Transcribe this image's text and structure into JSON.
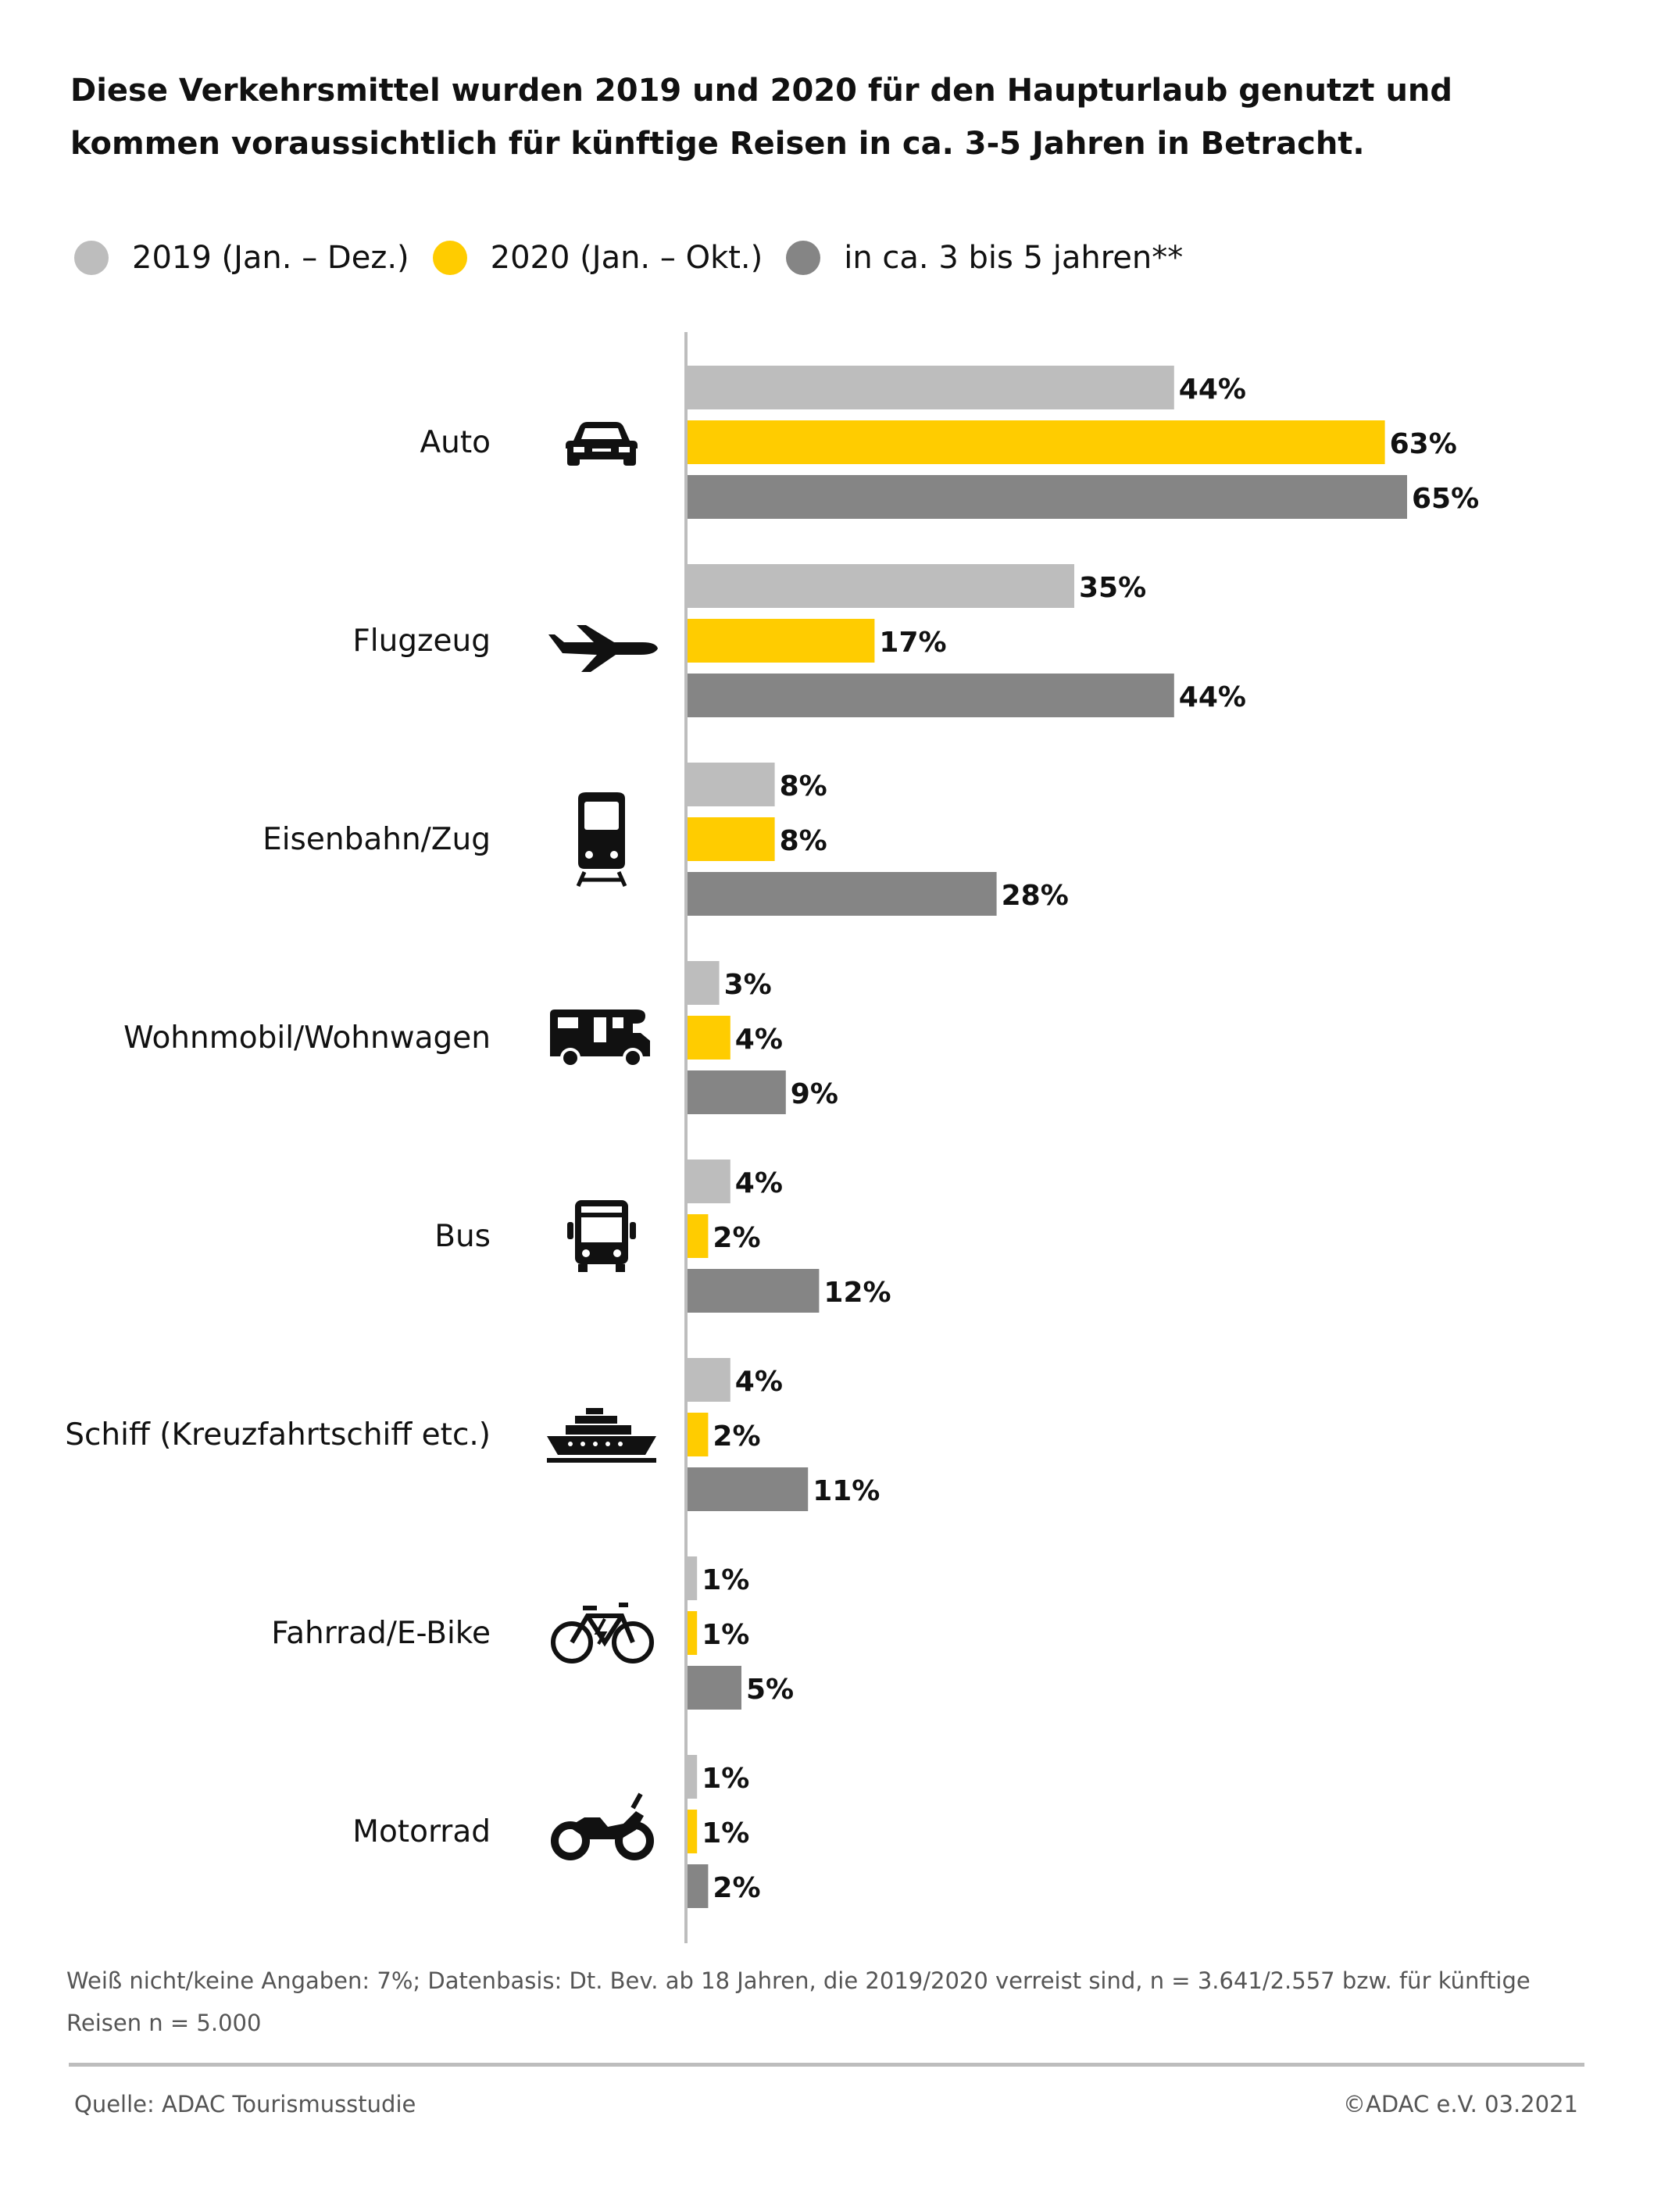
{
  "title": "Diese Verkehrsmittel wurden 2019 und 2020 für den Haupturlaub genutzt und kommen voraussichtlich für künftige Reisen in ca. 3-5 Jahren in Betracht.",
  "legend": [
    {
      "label": "2019 (Jan. – Dez.)",
      "color": "#bdbdbd"
    },
    {
      "label": "2020 (Jan. – Okt.)",
      "color": "#ffcc00"
    },
    {
      "label": "in ca. 3 bis 5 jahren**",
      "color": "#858585"
    }
  ],
  "chart_data": {
    "type": "bar",
    "orientation": "horizontal",
    "categories": [
      "Auto",
      "Flugzeug",
      "Eisenbahn/Zug",
      "Wohnmobil/Wohnwagen",
      "Bus",
      "Schiff (Kreuzfahrtschiff etc.)",
      "Fahrrad/E-Bike",
      "Motorrad"
    ],
    "category_icons": [
      "car-icon",
      "airplane-icon",
      "train-icon",
      "camper-icon",
      "bus-icon",
      "ship-icon",
      "bicycle-icon",
      "motorcycle-icon"
    ],
    "series": [
      {
        "name": "2019 (Jan. – Dez.)",
        "color": "#bdbdbd",
        "values": [
          44,
          35,
          8,
          3,
          4,
          4,
          1,
          1
        ],
        "labels": [
          "44%",
          "35%",
          "8%",
          "3%",
          "4%",
          "4%",
          "1%",
          "1%"
        ]
      },
      {
        "name": "2020 (Jan. – Okt.)",
        "color": "#ffcc00",
        "values": [
          63,
          17,
          8,
          4,
          2,
          2,
          1,
          1
        ],
        "labels": [
          "63%",
          "17%",
          "8%",
          "4%",
          "2%",
          "2%",
          "1%",
          "1%"
        ]
      },
      {
        "name": "in ca. 3 bis 5 jahren**",
        "color": "#858585",
        "values": [
          65,
          44,
          28,
          9,
          12,
          11,
          5,
          2
        ],
        "labels": [
          "65%",
          "44%",
          "28%",
          "9%",
          "12%",
          "11%",
          "5%",
          "2%"
        ]
      }
    ],
    "unit": "%",
    "xlim": [
      0,
      100
    ],
    "grid": false,
    "legend_position": "top-left"
  },
  "footnote": "Weiß nicht/keine Angaben: 7%; Datenbasis: Dt. Bev. ab 18 Jahren, die 2019/2020 verreist sind, n = 3.641/2.557 bzw. für künftige Reisen n = 5.000",
  "source": "Quelle: ADAC Tourismusstudie",
  "copyright": "©ADAC e.V.  03.2021"
}
